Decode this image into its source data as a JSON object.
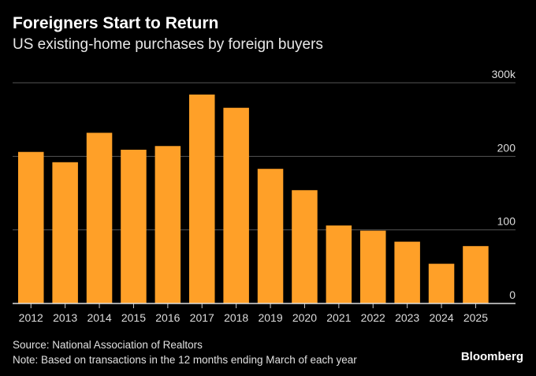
{
  "chart_data": {
    "type": "bar",
    "title": "Foreigners Start to Return",
    "subtitle": "US existing-home purchases by foreign buyers",
    "categories": [
      "2012",
      "2013",
      "2014",
      "2015",
      "2016",
      "2017",
      "2018",
      "2019",
      "2020",
      "2021",
      "2022",
      "2023",
      "2024",
      "2025"
    ],
    "values": [
      206,
      192,
      232,
      209,
      214,
      284,
      266,
      183,
      154,
      106,
      99,
      84,
      54,
      78
    ],
    "unit": "thousands",
    "ylim": [
      0,
      300
    ],
    "yticks": [
      {
        "value": 0,
        "label": "0"
      },
      {
        "value": 100,
        "label": "100"
      },
      {
        "value": 200,
        "label": "200"
      },
      {
        "value": 300,
        "label": "300k"
      }
    ],
    "y_axis_position": "right",
    "grid": true,
    "bar_color": "#ffa028"
  },
  "footer": {
    "source": "Source: National Association of Realtors",
    "note": "Note: Based on transactions in the 12 months ending March of each year",
    "brand": "Bloomberg"
  }
}
